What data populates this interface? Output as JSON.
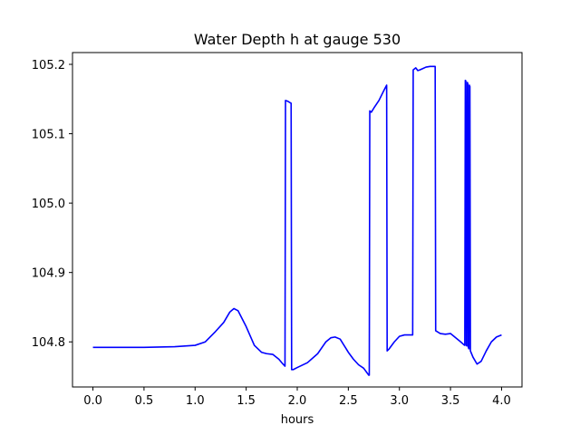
{
  "chart_data": {
    "type": "line",
    "title": "Water Depth h at gauge 530",
    "xlabel": "hours",
    "ylabel": "",
    "xlim": [
      -0.2,
      4.2
    ],
    "ylim": [
      104.735,
      105.217
    ],
    "xticks": [
      0.0,
      0.5,
      1.0,
      1.5,
      2.0,
      2.5,
      3.0,
      3.5,
      4.0
    ],
    "xtick_labels": [
      "0.0",
      "0.5",
      "1.0",
      "1.5",
      "2.0",
      "2.5",
      "3.0",
      "3.5",
      "4.0"
    ],
    "yticks": [
      104.8,
      104.9,
      105.0,
      105.1,
      105.2
    ],
    "ytick_labels": [
      "104.8",
      "104.9",
      "105.0",
      "105.1",
      "105.2"
    ],
    "grid": false,
    "series": [
      {
        "color": "#0000ff",
        "points": [
          [
            0.0,
            104.792
          ],
          [
            0.5,
            104.792
          ],
          [
            0.8,
            104.793
          ],
          [
            1.0,
            104.795
          ],
          [
            1.1,
            104.8
          ],
          [
            1.2,
            104.815
          ],
          [
            1.28,
            104.828
          ],
          [
            1.34,
            104.843
          ],
          [
            1.38,
            104.848
          ],
          [
            1.42,
            104.845
          ],
          [
            1.5,
            104.822
          ],
          [
            1.58,
            104.795
          ],
          [
            1.65,
            104.785
          ],
          [
            1.7,
            104.783
          ],
          [
            1.76,
            104.782
          ],
          [
            1.82,
            104.775
          ],
          [
            1.86,
            104.768
          ],
          [
            1.88,
            104.765
          ],
          [
            1.885,
            105.148
          ],
          [
            1.905,
            105.147
          ],
          [
            1.915,
            105.146
          ],
          [
            1.94,
            105.144
          ],
          [
            1.945,
            104.76
          ],
          [
            1.96,
            104.76
          ],
          [
            2.0,
            104.763
          ],
          [
            2.1,
            104.77
          ],
          [
            2.2,
            104.783
          ],
          [
            2.28,
            104.8
          ],
          [
            2.33,
            104.806
          ],
          [
            2.37,
            104.807
          ],
          [
            2.42,
            104.804
          ],
          [
            2.5,
            104.785
          ],
          [
            2.55,
            104.775
          ],
          [
            2.6,
            104.767
          ],
          [
            2.65,
            104.762
          ],
          [
            2.7,
            104.752
          ],
          [
            2.705,
            104.752
          ],
          [
            2.71,
            105.133
          ],
          [
            2.725,
            105.131
          ],
          [
            2.75,
            105.137
          ],
          [
            2.8,
            105.148
          ],
          [
            2.85,
            105.163
          ],
          [
            2.875,
            105.17
          ],
          [
            2.88,
            104.787
          ],
          [
            2.9,
            104.79
          ],
          [
            2.95,
            104.8
          ],
          [
            3.0,
            104.808
          ],
          [
            3.05,
            104.81
          ],
          [
            3.13,
            104.81
          ],
          [
            3.135,
            105.192
          ],
          [
            3.16,
            105.195
          ],
          [
            3.18,
            105.191
          ],
          [
            3.2,
            105.192
          ],
          [
            3.23,
            105.194
          ],
          [
            3.26,
            105.196
          ],
          [
            3.3,
            105.197
          ],
          [
            3.35,
            105.197
          ],
          [
            3.355,
            104.816
          ],
          [
            3.4,
            104.812
          ],
          [
            3.45,
            104.811
          ],
          [
            3.5,
            104.812
          ],
          [
            3.55,
            104.806
          ],
          [
            3.6,
            104.8
          ],
          [
            3.63,
            104.796
          ],
          [
            3.64,
            104.795
          ],
          [
            3.645,
            105.177
          ],
          [
            3.65,
            105.176
          ],
          [
            3.655,
            104.795
          ],
          [
            3.66,
            104.794
          ],
          [
            3.665,
            105.174
          ],
          [
            3.67,
            105.172
          ],
          [
            3.675,
            104.792
          ],
          [
            3.68,
            104.79
          ],
          [
            3.685,
            105.17
          ],
          [
            3.69,
            105.168
          ],
          [
            3.695,
            104.787
          ],
          [
            3.72,
            104.778
          ],
          [
            3.76,
            104.768
          ],
          [
            3.8,
            104.772
          ],
          [
            3.85,
            104.787
          ],
          [
            3.9,
            104.8
          ],
          [
            3.95,
            104.807
          ],
          [
            4.0,
            104.81
          ]
        ]
      }
    ]
  }
}
